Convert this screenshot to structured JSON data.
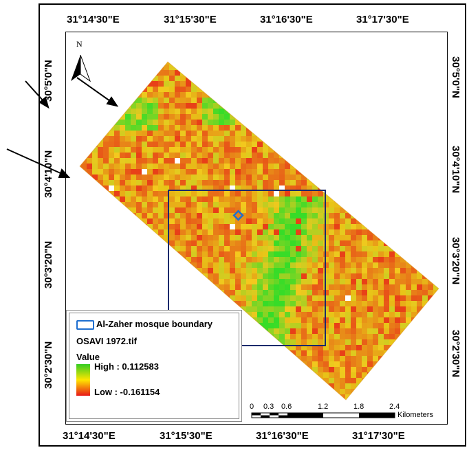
{
  "axes": {
    "top_ticks": [
      "31°14'30\"E",
      "31°15'30\"E",
      "31°16'30\"E",
      "31°17'30\"E"
    ],
    "bottom_ticks": [
      "31°14'30\"E",
      "31°15'30\"E",
      "31°16'30\"E",
      "31°17'30\"E"
    ],
    "left_ticks": [
      "30°5'0\"N",
      "30°4'10\"N",
      "30°3'20\"N",
      "30°2'30\"N"
    ],
    "right_ticks": [
      "30°5'0\"N",
      "30°4'10\"N",
      "30°3'20\"N",
      "30°2'30\"N"
    ]
  },
  "north_arrow": {
    "label": "N",
    "icon": "north-arrow-icon"
  },
  "legend": {
    "boundary_label": "Al-Zaher mosque boundary",
    "boundary_color": "#1f6fd0",
    "raster_name": "OSAVI 1972.tif",
    "value_title": "Value",
    "high_label": "High : 0.112583",
    "low_label": "Low : -0.161154",
    "high_color": "#33cc22",
    "mid_color": "#ffe600",
    "low_color": "#e81818"
  },
  "scale_bar": {
    "ticks": [
      "0",
      "0.3",
      "0.6",
      "1.2",
      "1.8",
      "2.4"
    ],
    "unit": "Kilometers"
  },
  "map": {
    "extent_box_color": "#1a2a6c"
  }
}
